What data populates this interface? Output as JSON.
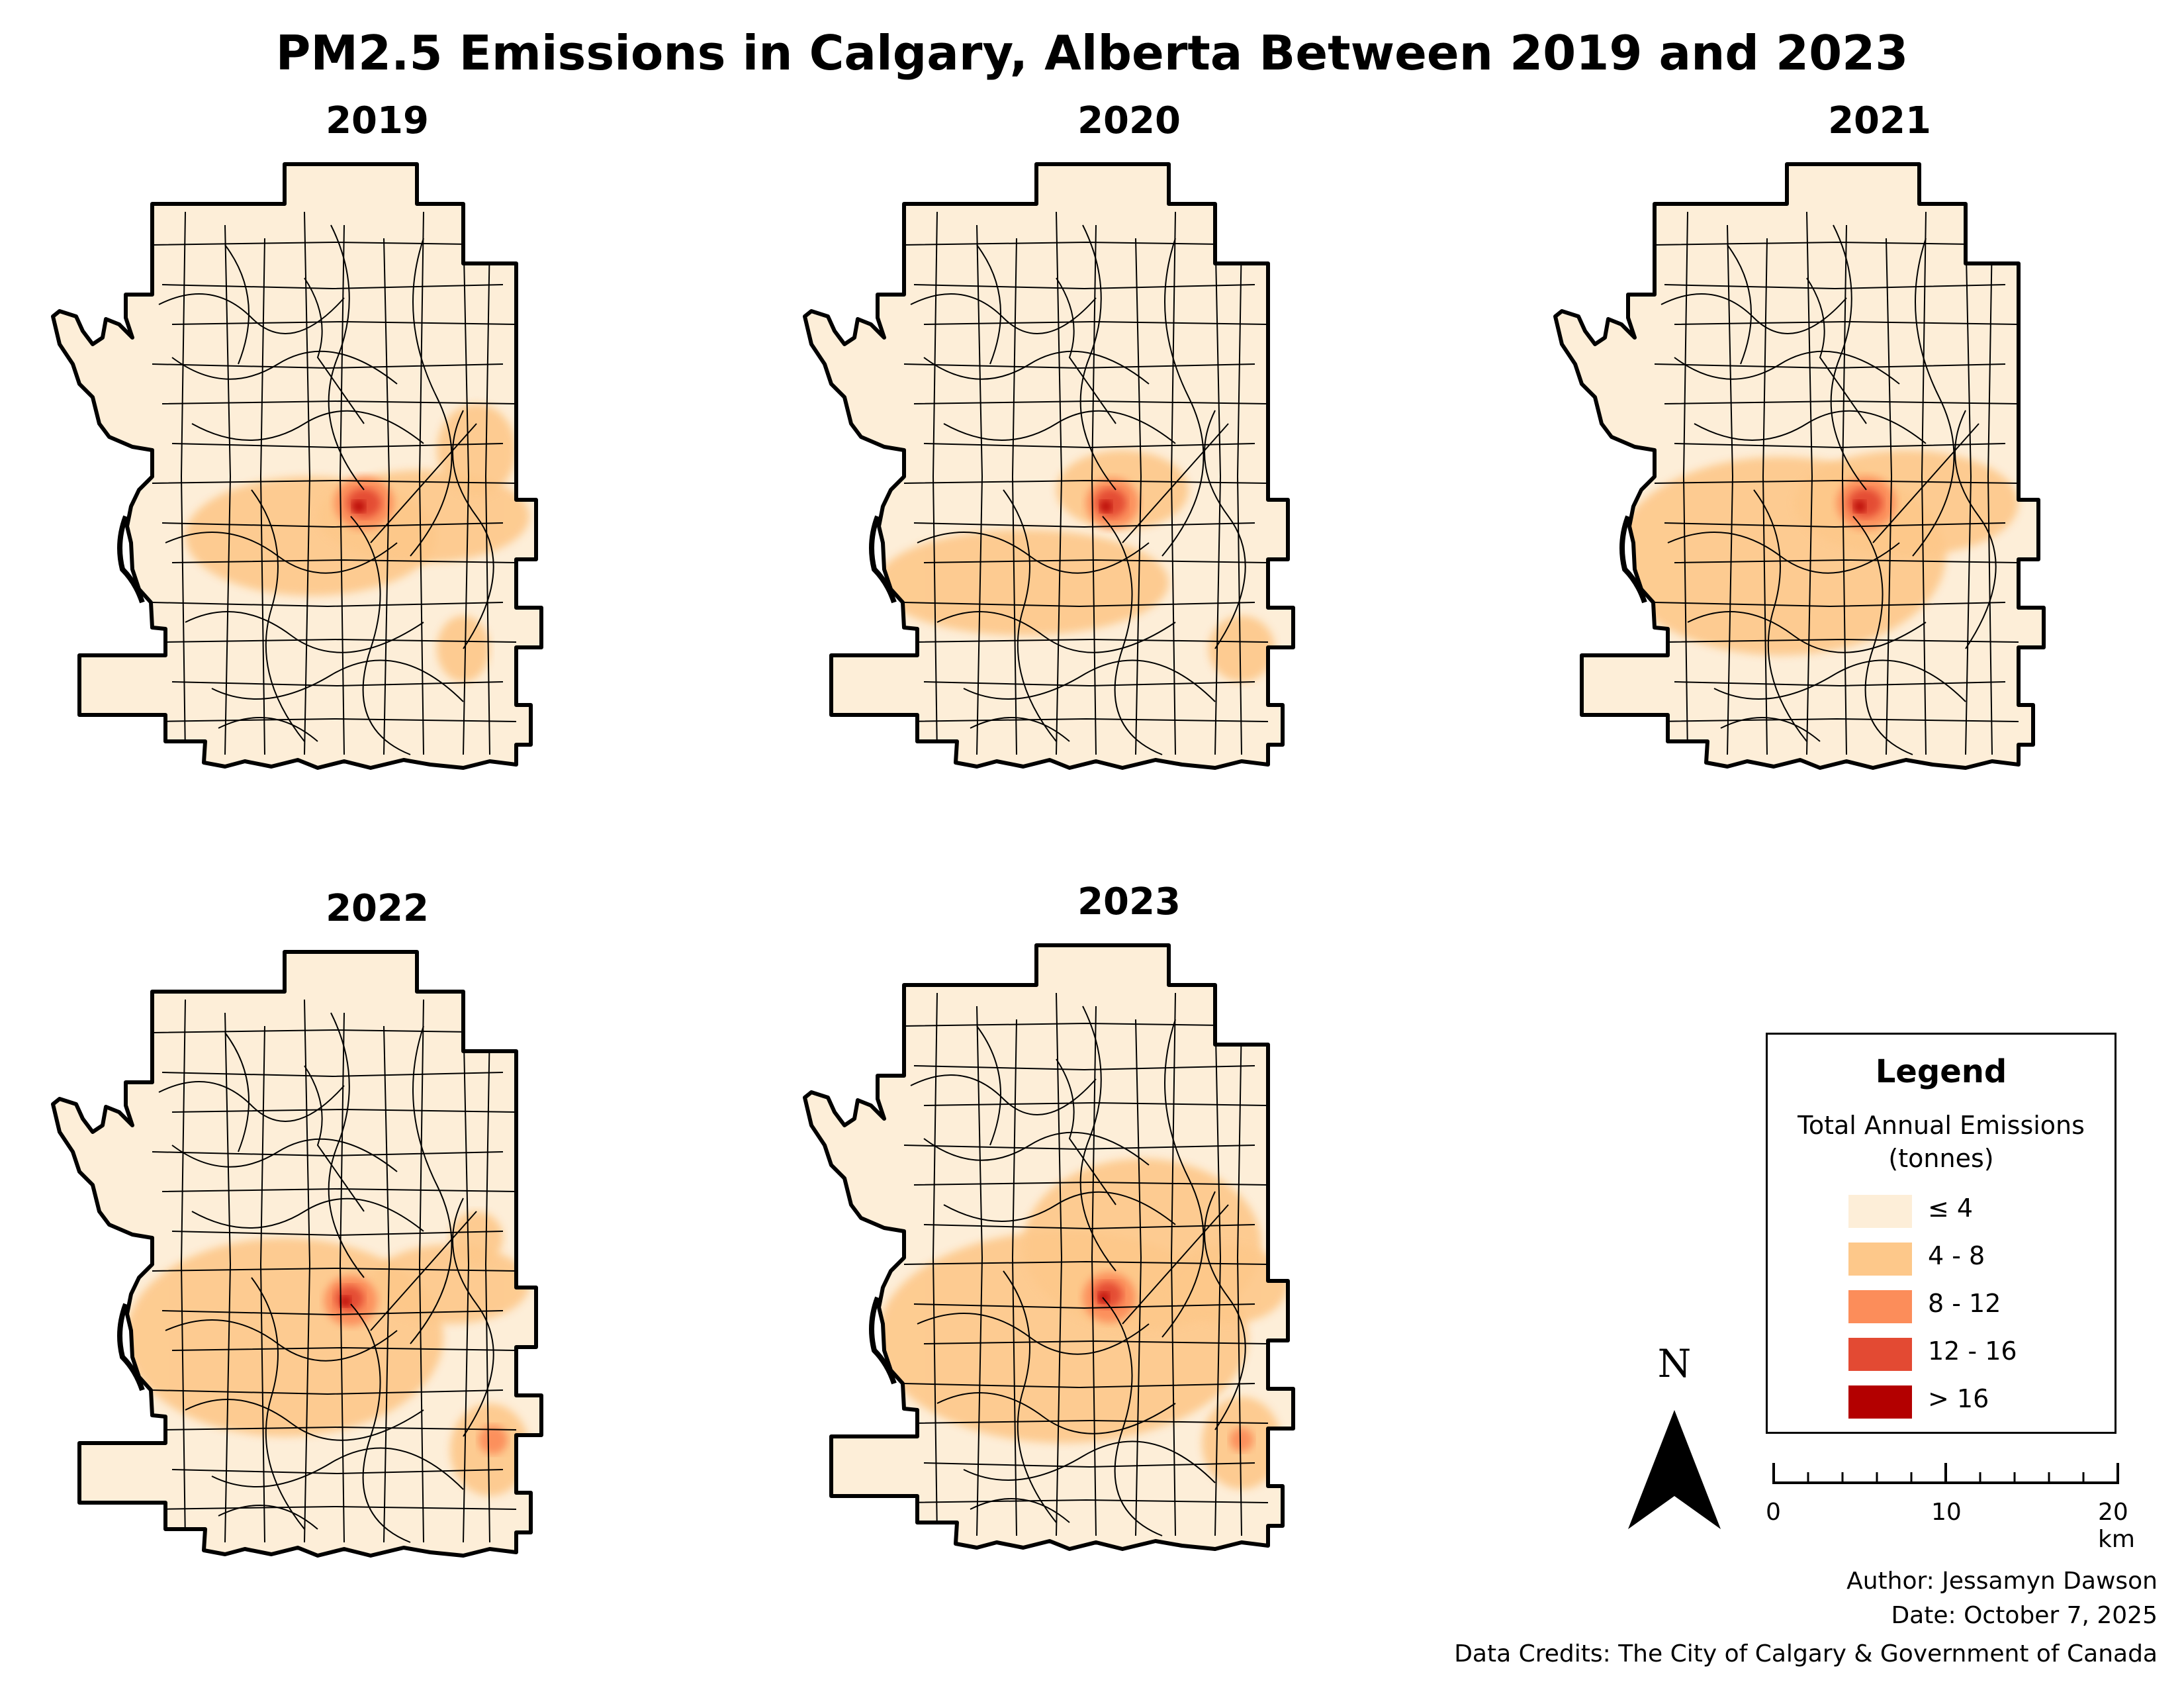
{
  "title": "PM2.5 Emissions in Calgary, Alberta Between 2019 and 2023",
  "panels": [
    {
      "year": "2019"
    },
    {
      "year": "2020"
    },
    {
      "year": "2021"
    },
    {
      "year": "2022"
    },
    {
      "year": "2023"
    }
  ],
  "legend": {
    "title": "Legend",
    "subtitle_line1": "Total Annual Emissions",
    "subtitle_line2": "(tonnes)",
    "classes": [
      {
        "label": "≤ 4",
        "color": "#fdeed8"
      },
      {
        "label": "4 - 8",
        "color": "#fdc88a"
      },
      {
        "label": "8 - 12",
        "color": "#fc8d5a"
      },
      {
        "label": "12 - 16",
        "color": "#e34a33"
      },
      {
        "label": "> 16",
        "color": "#b30000"
      }
    ]
  },
  "north_arrow": {
    "label": "N"
  },
  "scale_bar": {
    "labels": [
      "0",
      "10",
      "20 km"
    ]
  },
  "credits": {
    "author": "Author: Jessamyn Dawson",
    "date": "Date: October 7, 2025",
    "data": "Data Credits: The City of Calgary & Government of Canada"
  }
}
